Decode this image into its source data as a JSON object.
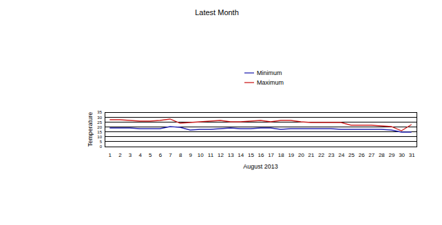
{
  "chart_data": {
    "type": "line",
    "title": "Latest Month",
    "x_label": "August 2013",
    "y_label": "Temperature",
    "x": [
      1,
      2,
      3,
      4,
      5,
      6,
      7,
      8,
      9,
      10,
      11,
      12,
      13,
      14,
      15,
      16,
      17,
      18,
      19,
      20,
      21,
      22,
      23,
      24,
      25,
      26,
      27,
      28,
      29,
      30,
      31
    ],
    "series": [
      {
        "name": "Minimum",
        "color": "#2424b0",
        "values": [
          18.9,
          18.9,
          18.9,
          18.2,
          18.2,
          18.2,
          20.3,
          19.6,
          16.8,
          17.5,
          17.5,
          18.2,
          18.9,
          18.2,
          18.2,
          18.9,
          18.9,
          17.5,
          18.2,
          18.2,
          18.2,
          18.2,
          18.2,
          17.5,
          17.5,
          17.5,
          17.5,
          17.5,
          16.8,
          14.7,
          14.7
        ]
      },
      {
        "name": "Maximum",
        "color": "#cc2020",
        "values": [
          27.3,
          27.3,
          26.6,
          25.9,
          25.9,
          26.6,
          28.0,
          23.8,
          24.5,
          25.2,
          25.9,
          26.6,
          25.2,
          25.2,
          25.9,
          26.6,
          25.2,
          26.6,
          26.6,
          25.2,
          24.5,
          24.5,
          24.5,
          24.5,
          21.7,
          21.7,
          21.7,
          21.0,
          20.3,
          16.1,
          22.4
        ]
      }
    ],
    "xlim": [
      0.5,
      31.5
    ],
    "xticks": [
      1,
      2,
      3,
      4,
      5,
      6,
      7,
      8,
      9,
      10,
      11,
      12,
      13,
      14,
      15,
      16,
      17,
      18,
      19,
      20,
      21,
      22,
      23,
      24,
      25,
      26,
      27,
      28,
      29,
      30,
      31
    ],
    "ylim": [
      0,
      35
    ],
    "yticks": [
      0,
      5,
      10,
      15,
      20,
      25,
      30,
      35
    ],
    "grid": true,
    "legend": "top"
  }
}
